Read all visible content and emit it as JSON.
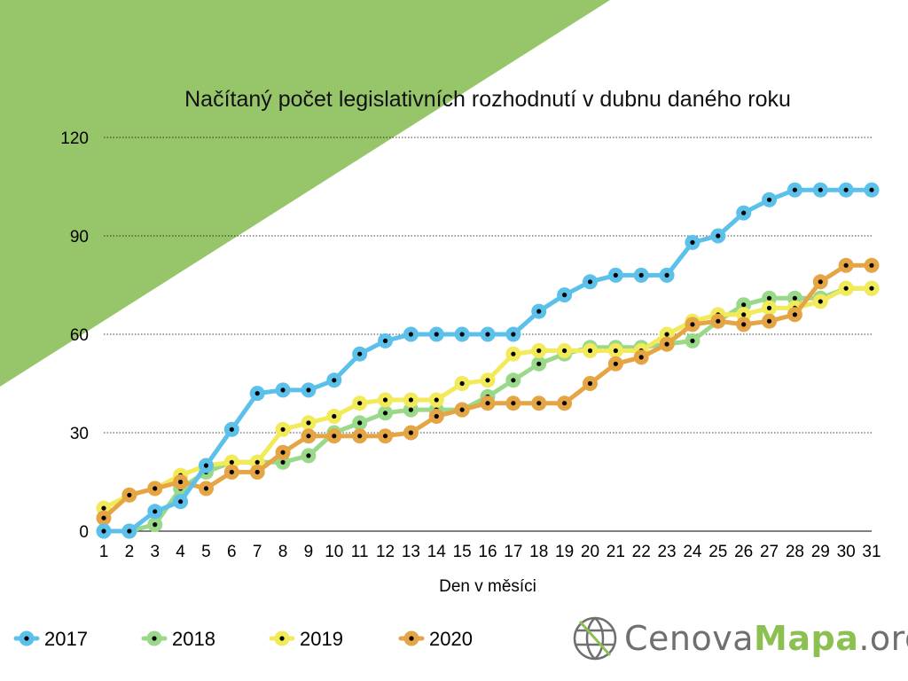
{
  "colors": {
    "background_triangle": "#97c66a",
    "series": [
      "#5bc0ea",
      "#9ad88a",
      "#f2ea58",
      "#e5a544"
    ],
    "marker": "#000000",
    "grid": "#000000",
    "brand_green": "#8cc152",
    "brand_gray": "#6f6f6f"
  },
  "brand": {
    "part1": "Cenova",
    "part2": "Mapa",
    "part3": ".org",
    "icon": "globe-grid-icon"
  },
  "chart_data": {
    "type": "line",
    "title": "Načítaný počet legislativních rozhodnutí v dubnu daného roku",
    "xlabel": "Den v měsíci",
    "ylabel": "",
    "x": [
      1,
      2,
      3,
      4,
      5,
      6,
      7,
      8,
      9,
      10,
      11,
      12,
      13,
      14,
      15,
      16,
      17,
      18,
      19,
      20,
      21,
      22,
      23,
      24,
      25,
      26,
      27,
      28,
      29,
      30,
      31
    ],
    "ylim": [
      0,
      120
    ],
    "yticks": [
      0,
      30,
      60,
      90,
      120
    ],
    "grid": "horizontal-dotted",
    "legend_position": "bottom-left",
    "series": [
      {
        "name": "2017",
        "values": [
          0,
          0,
          6,
          9,
          20,
          31,
          42,
          43,
          43,
          46,
          54,
          58,
          60,
          60,
          60,
          60,
          60,
          67,
          72,
          76,
          78,
          78,
          78,
          88,
          90,
          97,
          101,
          104,
          104,
          104,
          104
        ]
      },
      {
        "name": "2018",
        "values": [
          0,
          0,
          2,
          13,
          18,
          21,
          21,
          21,
          23,
          30,
          33,
          36,
          37,
          37,
          37,
          41,
          46,
          51,
          54,
          56,
          56,
          56,
          57,
          58,
          64,
          69,
          71,
          71,
          71,
          74,
          74
        ]
      },
      {
        "name": "2019",
        "values": [
          7,
          11,
          13,
          17,
          20,
          21,
          21,
          31,
          33,
          35,
          39,
          40,
          40,
          40,
          45,
          46,
          54,
          55,
          55,
          55,
          55,
          55,
          60,
          64,
          66,
          66,
          68,
          68,
          70,
          74,
          74
        ]
      },
      {
        "name": "2020",
        "values": [
          4,
          11,
          13,
          15,
          13,
          18,
          18,
          24,
          29,
          29,
          29,
          29,
          30,
          35,
          37,
          39,
          39,
          39,
          39,
          45,
          51,
          53,
          57,
          63,
          64,
          63,
          64,
          66,
          76,
          81,
          81
        ]
      }
    ]
  }
}
